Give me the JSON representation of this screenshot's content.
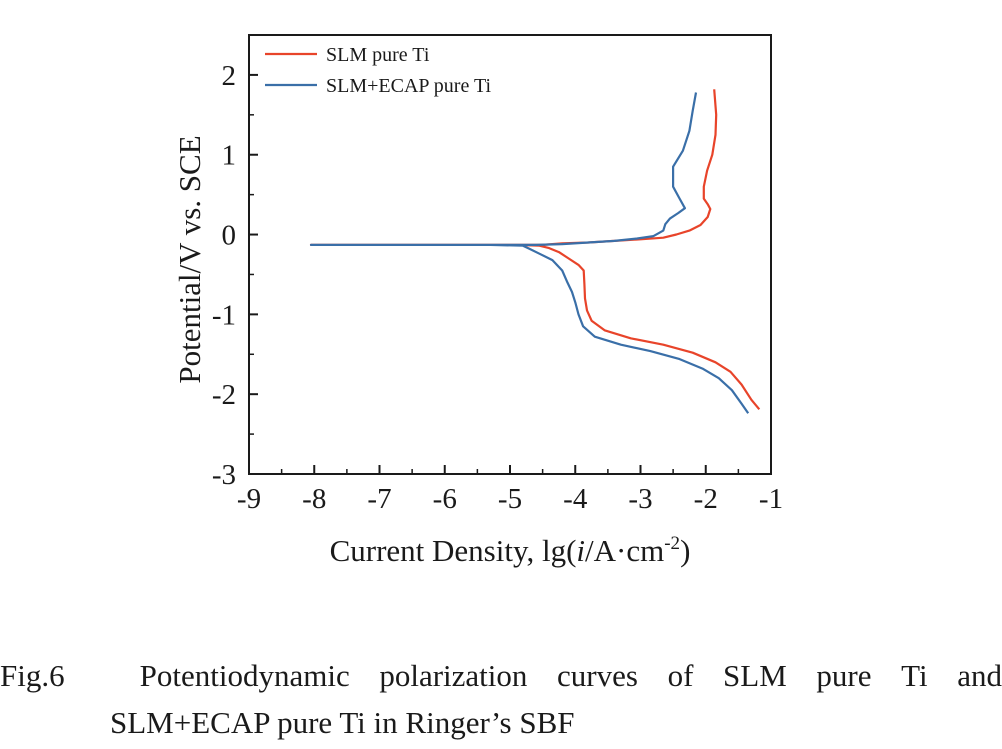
{
  "chart_data": {
    "type": "line",
    "xlabel": "Current Density, lg(i/A·cm-2)",
    "xlabel_parts": {
      "prefix": "Current Density, lg(",
      "italic": "i",
      "middle": "/A·cm",
      "sup": "-2",
      "suffix": ")"
    },
    "ylabel": "Potential/V vs. SCE",
    "xlim": [
      -9,
      -1
    ],
    "ylim": [
      -3,
      2.5
    ],
    "xticks": [
      -9,
      -8,
      -7,
      -6,
      -5,
      -4,
      -3,
      -2,
      -1
    ],
    "xtick_labels": [
      "-9",
      "-8",
      "-7",
      "-6",
      "-5",
      "-4",
      "-3",
      "-2",
      "-1"
    ],
    "yticks": [
      -3,
      -2,
      -1,
      0,
      1,
      2
    ],
    "ytick_labels": [
      "-3",
      "-2",
      "-1",
      "0",
      "1",
      "2"
    ],
    "grid": false,
    "legend_position": "top-left",
    "series": [
      {
        "name": "SLM pure Ti",
        "color": "#e8442a",
        "points": [
          [
            -1.18,
            -2.19
          ],
          [
            -1.3,
            -2.07
          ],
          [
            -1.45,
            -1.88
          ],
          [
            -1.62,
            -1.72
          ],
          [
            -1.85,
            -1.6
          ],
          [
            -2.2,
            -1.48
          ],
          [
            -2.65,
            -1.38
          ],
          [
            -3.15,
            -1.3
          ],
          [
            -3.55,
            -1.2
          ],
          [
            -3.75,
            -1.08
          ],
          [
            -3.82,
            -0.95
          ],
          [
            -3.85,
            -0.8
          ],
          [
            -3.86,
            -0.62
          ],
          [
            -3.87,
            -0.45
          ],
          [
            -3.95,
            -0.38
          ],
          [
            -4.1,
            -0.3
          ],
          [
            -4.25,
            -0.22
          ],
          [
            -4.4,
            -0.17
          ],
          [
            -4.55,
            -0.14
          ],
          [
            -4.9,
            -0.13
          ],
          [
            -6.5,
            -0.13
          ],
          [
            -8.05,
            -0.13
          ],
          [
            -5.2,
            -0.13
          ],
          [
            -4.5,
            -0.13
          ],
          [
            -4.2,
            -0.11
          ],
          [
            -3.8,
            -0.1
          ],
          [
            -3.4,
            -0.08
          ],
          [
            -3.0,
            -0.06
          ],
          [
            -2.65,
            -0.04
          ],
          [
            -2.45,
            0.0
          ],
          [
            -2.25,
            0.05
          ],
          [
            -2.08,
            0.12
          ],
          [
            -1.97,
            0.22
          ],
          [
            -1.93,
            0.32
          ],
          [
            -1.97,
            0.38
          ],
          [
            -2.03,
            0.45
          ],
          [
            -2.03,
            0.6
          ],
          [
            -1.98,
            0.8
          ],
          [
            -1.9,
            1.0
          ],
          [
            -1.85,
            1.25
          ],
          [
            -1.84,
            1.5
          ],
          [
            -1.87,
            1.82
          ]
        ]
      },
      {
        "name": "SLM+ECAP pure Ti",
        "color": "#3a6fa8",
        "points": [
          [
            -1.35,
            -2.24
          ],
          [
            -1.45,
            -2.12
          ],
          [
            -1.6,
            -1.95
          ],
          [
            -1.8,
            -1.8
          ],
          [
            -2.05,
            -1.68
          ],
          [
            -2.4,
            -1.56
          ],
          [
            -2.85,
            -1.46
          ],
          [
            -3.3,
            -1.38
          ],
          [
            -3.7,
            -1.28
          ],
          [
            -3.88,
            -1.15
          ],
          [
            -3.95,
            -1.0
          ],
          [
            -4.0,
            -0.85
          ],
          [
            -4.05,
            -0.72
          ],
          [
            -4.12,
            -0.6
          ],
          [
            -4.2,
            -0.45
          ],
          [
            -4.35,
            -0.32
          ],
          [
            -4.55,
            -0.24
          ],
          [
            -4.7,
            -0.18
          ],
          [
            -4.8,
            -0.14
          ],
          [
            -5.3,
            -0.13
          ],
          [
            -6.5,
            -0.13
          ],
          [
            -8.05,
            -0.13
          ],
          [
            -5.2,
            -0.13
          ],
          [
            -4.6,
            -0.13
          ],
          [
            -4.2,
            -0.12
          ],
          [
            -3.8,
            -0.1
          ],
          [
            -3.4,
            -0.08
          ],
          [
            -3.05,
            -0.05
          ],
          [
            -2.8,
            -0.02
          ],
          [
            -2.65,
            0.05
          ],
          [
            -2.62,
            0.13
          ],
          [
            -2.55,
            0.2
          ],
          [
            -2.42,
            0.27
          ],
          [
            -2.32,
            0.33
          ],
          [
            -2.4,
            0.45
          ],
          [
            -2.5,
            0.6
          ],
          [
            -2.5,
            0.85
          ],
          [
            -2.35,
            1.05
          ],
          [
            -2.25,
            1.3
          ],
          [
            -2.2,
            1.55
          ],
          [
            -2.15,
            1.78
          ]
        ]
      }
    ]
  },
  "caption": {
    "label": "Fig.6",
    "line1_words": [
      "Potentiodynamic",
      "polarization",
      "curves",
      "of",
      "SLM",
      "pure",
      "Ti",
      "and"
    ],
    "line2": "SLM+ECAP pure Ti in Ringer’s SBF"
  }
}
